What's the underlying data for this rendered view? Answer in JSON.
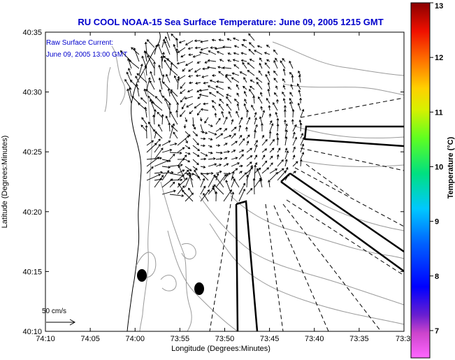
{
  "chart_data": {
    "type": "vector-map",
    "title": "RU COOL  NOAA-15  Sea Surface Temperature:  June 09, 2005 1215 GMT",
    "annotation_line1": "Raw Surface Current:",
    "annotation_line2": "June 09, 2005 13:00 GMT",
    "xlabel": "Longitude (Degrees:Minutes)",
    "ylabel": "Latitude (Degrees:Minutes)",
    "x_ticks": [
      "74:10",
      "74:05",
      "74:00",
      "73:55",
      "73:50",
      "73:45",
      "73:40",
      "73:35",
      "73:3"
    ],
    "y_ticks": [
      "40:35",
      "40:30",
      "40:25",
      "40:20",
      "40:15",
      "40:10"
    ],
    "scale_label": "50 cm/s",
    "colorbar": {
      "label": "Temperature (°C)",
      "ticks": [
        "13",
        "12",
        "11",
        "10",
        "9",
        "8",
        "7"
      ],
      "range": [
        6.5,
        13
      ]
    },
    "grid": false
  }
}
